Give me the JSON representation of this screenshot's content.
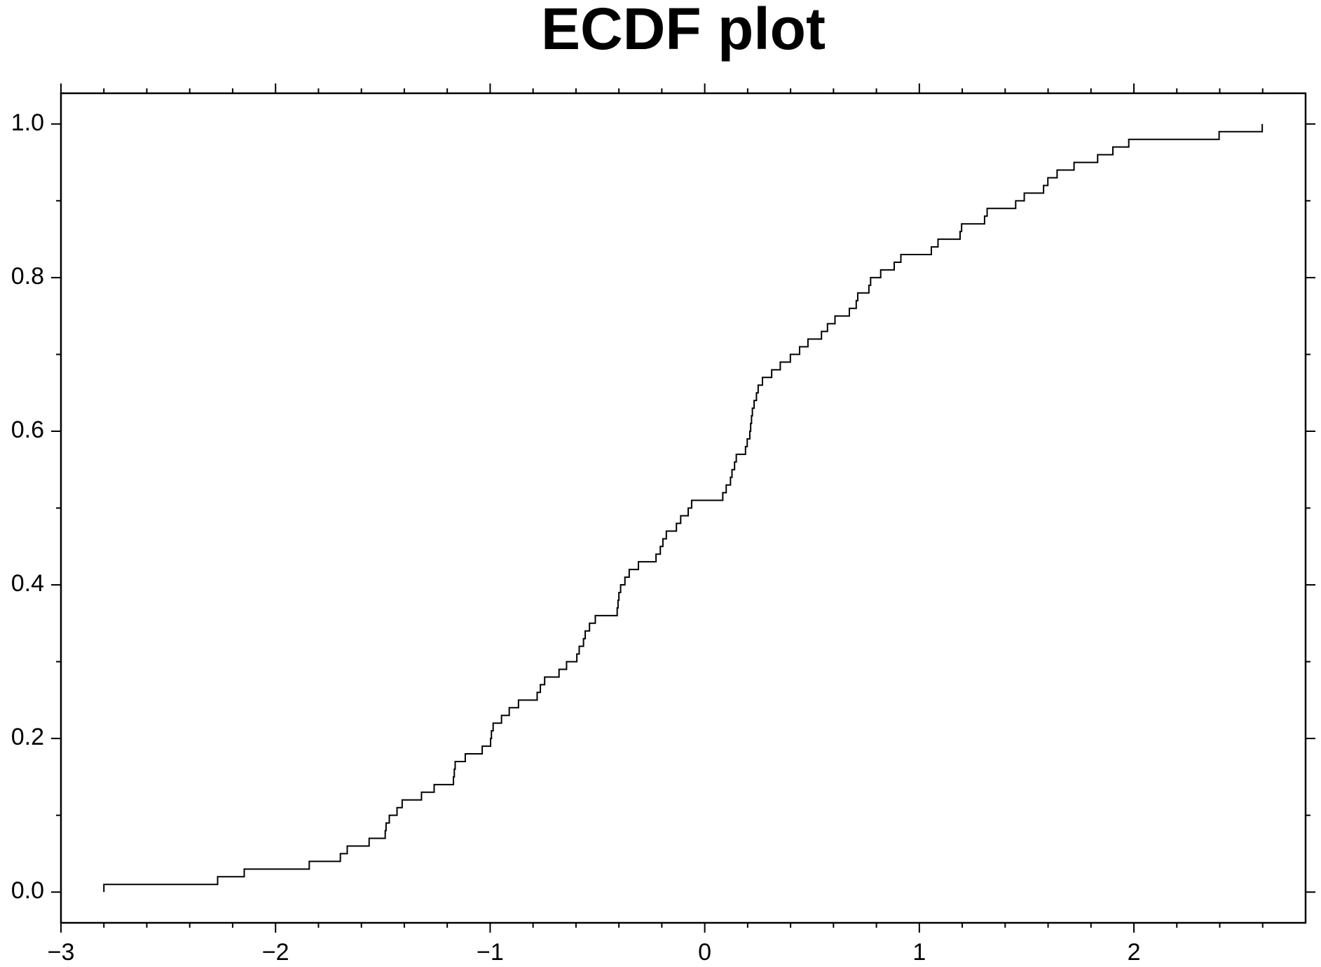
{
  "chart_data": {
    "type": "ecdf",
    "title": "ECDF plot",
    "color": "#000000",
    "x": [
      -2.8,
      -2.27,
      -2.146,
      -1.843,
      -1.698,
      -1.666,
      -1.564,
      -1.489,
      -1.485,
      -1.47,
      -1.434,
      -1.41,
      -1.32,
      -1.261,
      -1.171,
      -1.167,
      -1.163,
      -1.116,
      -1.037,
      -0.998,
      -0.994,
      -0.986,
      -0.947,
      -0.911,
      -0.868,
      -0.781,
      -0.766,
      -0.746,
      -0.679,
      -0.644,
      -0.596,
      -0.585,
      -0.565,
      -0.557,
      -0.537,
      -0.51,
      -0.408,
      -0.404,
      -0.4,
      -0.392,
      -0.372,
      -0.352,
      -0.309,
      -0.227,
      -0.207,
      -0.195,
      -0.179,
      -0.132,
      -0.112,
      -0.077,
      -0.061,
      0.084,
      0.1,
      0.12,
      0.127,
      0.139,
      0.147,
      0.19,
      0.198,
      0.21,
      0.214,
      0.218,
      0.222,
      0.23,
      0.241,
      0.249,
      0.269,
      0.312,
      0.352,
      0.399,
      0.442,
      0.481,
      0.544,
      0.572,
      0.607,
      0.674,
      0.706,
      0.713,
      0.765,
      0.773,
      0.82,
      0.883,
      0.914,
      1.056,
      1.087,
      1.19,
      1.197,
      1.304,
      1.316,
      1.449,
      1.489,
      1.579,
      1.599,
      1.642,
      1.721,
      1.831,
      1.902,
      1.976,
      2.397,
      2.598
    ],
    "values": [
      0.01,
      0.02,
      0.03,
      0.04,
      0.05,
      0.06,
      0.07,
      0.08,
      0.09,
      0.1,
      0.11,
      0.12,
      0.13,
      0.14,
      0.15,
      0.16,
      0.17,
      0.18,
      0.19,
      0.2,
      0.21,
      0.22,
      0.23,
      0.24,
      0.25,
      0.26,
      0.27,
      0.28,
      0.29,
      0.3,
      0.31,
      0.32,
      0.33,
      0.34,
      0.35,
      0.36,
      0.37,
      0.38,
      0.39,
      0.4,
      0.41,
      0.42,
      0.43,
      0.44,
      0.45,
      0.46,
      0.47,
      0.48,
      0.49,
      0.5,
      0.51,
      0.52,
      0.53,
      0.54,
      0.55,
      0.56,
      0.57,
      0.58,
      0.59,
      0.6,
      0.61,
      0.62,
      0.63,
      0.64,
      0.65,
      0.66,
      0.67,
      0.68,
      0.69,
      0.7,
      0.71,
      0.72,
      0.73,
      0.74,
      0.75,
      0.76,
      0.77,
      0.78,
      0.79,
      0.8,
      0.81,
      0.82,
      0.83,
      0.84,
      0.85,
      0.86,
      0.87,
      0.88,
      0.89,
      0.9,
      0.91,
      0.92,
      0.93,
      0.94,
      0.95,
      0.96,
      0.97,
      0.98,
      0.99,
      1.0
    ],
    "xlim": [
      -3,
      2.8
    ],
    "ylim": [
      -0.04,
      1.04
    ],
    "xticks": [
      {
        "value": -3,
        "label": "−3"
      },
      {
        "value": -2,
        "label": "−2"
      },
      {
        "value": -1,
        "label": "−1"
      },
      0,
      1,
      2
    ],
    "xminorticks": [
      -2.8,
      -2.6,
      -2.4,
      -2.2,
      -1.8,
      -1.6,
      -1.4,
      -1.2,
      -0.8,
      -0.6,
      -0.4,
      -0.2,
      0.2,
      0.4,
      0.6,
      0.8,
      1.2,
      1.4,
      1.6,
      1.8,
      2.2,
      2.4,
      2.6
    ],
    "yticks": [
      {
        "value": 0,
        "label": "0.0"
      },
      0.2,
      0.4,
      0.6,
      0.8,
      {
        "value": 1,
        "label": "1.0"
      }
    ],
    "yminorticks": [
      0.1,
      0.3,
      0.5,
      0.7,
      0.9
    ]
  }
}
